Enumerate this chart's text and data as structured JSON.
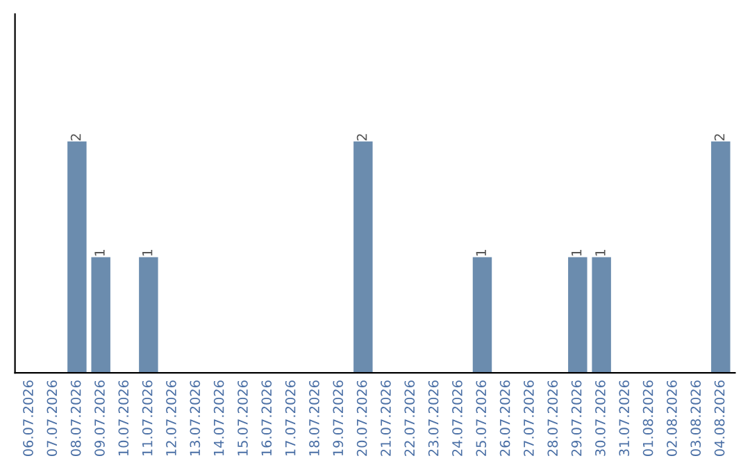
{
  "chart_data": {
    "type": "bar",
    "categories": [
      "06.07.2026",
      "07.07.2026",
      "08.07.2026",
      "09.07.2026",
      "10.07.2026",
      "11.07.2026",
      "12.07.2026",
      "13.07.2026",
      "14.07.2026",
      "15.07.2026",
      "16.07.2026",
      "17.07.2026",
      "18.07.2026",
      "19.07.2026",
      "20.07.2026",
      "21.07.2026",
      "22.07.2026",
      "23.07.2026",
      "24.07.2026",
      "25.07.2026",
      "26.07.2026",
      "27.07.2026",
      "28.07.2026",
      "29.07.2026",
      "30.07.2026",
      "31.07.2026",
      "01.08.2026",
      "02.08.2026",
      "03.08.2026",
      "04.08.2026"
    ],
    "values": [
      0,
      0,
      2,
      1,
      0,
      1,
      0,
      0,
      0,
      0,
      0,
      0,
      0,
      0,
      2,
      0,
      0,
      0,
      0,
      1,
      0,
      0,
      0,
      1,
      1,
      0,
      0,
      0,
      0,
      2
    ],
    "value_labels": [
      null,
      null,
      "2",
      "1",
      null,
      "1",
      null,
      null,
      null,
      null,
      null,
      null,
      null,
      null,
      "2",
      null,
      null,
      null,
      null,
      "1",
      null,
      null,
      null,
      "1",
      "1",
      null,
      null,
      null,
      null,
      "2"
    ],
    "color": "#6b8cae",
    "ylim": [
      0,
      3.1
    ],
    "tick_labels": "x",
    "grid": false,
    "legend": false
  }
}
